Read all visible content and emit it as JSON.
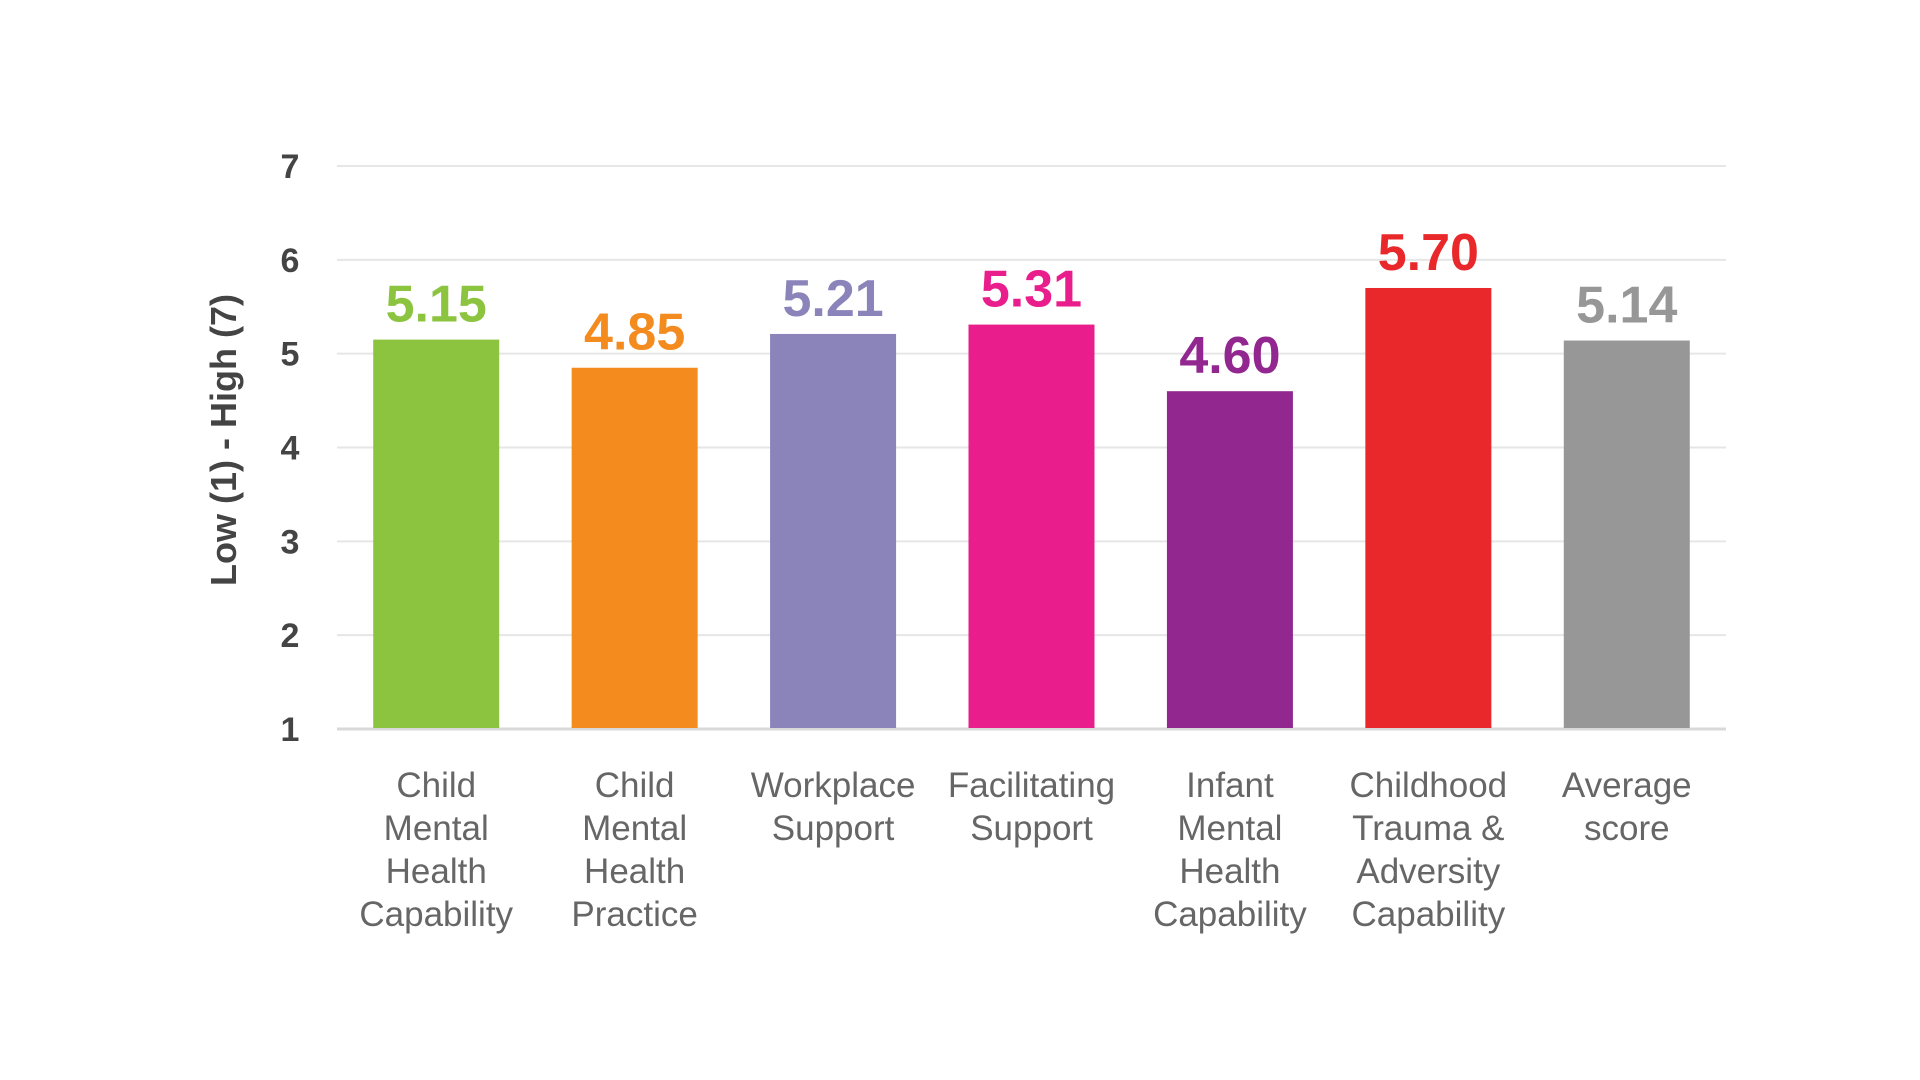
{
  "chart_data": {
    "type": "bar",
    "title": "",
    "xlabel": "",
    "ylabel": "Low (1) - High (7)",
    "ylim": [
      1,
      7
    ],
    "yticks": [
      "1",
      "2",
      "3",
      "4",
      "5",
      "6",
      "7"
    ],
    "grid": true,
    "categories": [
      [
        "Child",
        "Mental",
        "Health",
        "Capability"
      ],
      [
        "Child",
        "Mental",
        "Health",
        "Practice"
      ],
      [
        "Workplace",
        "Support"
      ],
      [
        "Facilitating",
        "Support"
      ],
      [
        "Infant",
        "Mental",
        "Health",
        "Capability"
      ],
      [
        "Childhood",
        "Trauma &",
        "Adversity",
        "Capability"
      ],
      [
        "Average",
        "score"
      ]
    ],
    "values": [
      5.15,
      4.85,
      5.21,
      5.31,
      4.6,
      5.7,
      5.14
    ],
    "value_labels": [
      "5.15",
      "4.85",
      "5.21",
      "5.31",
      "4.60",
      "5.70",
      "5.14"
    ],
    "colors": [
      "#8CC43F",
      "#F48B1F",
      "#8B84BA",
      "#E91E8C",
      "#92278F",
      "#E8282A",
      "#979797"
    ]
  }
}
